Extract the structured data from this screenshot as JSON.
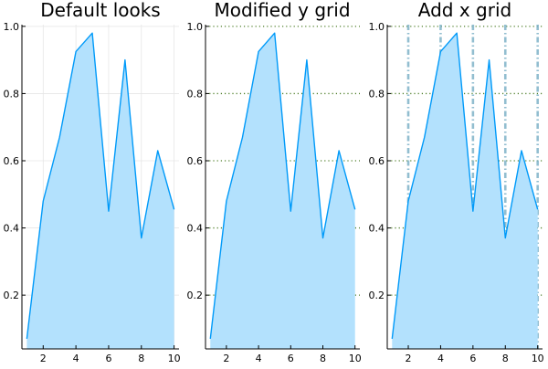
{
  "chart_data": [
    {
      "type": "area",
      "title": "Default looks",
      "xlabel": "",
      "ylabel": "",
      "x": [
        1,
        2,
        3,
        4,
        5,
        6,
        7,
        8,
        9,
        10
      ],
      "series": [
        {
          "values": [
            0.07,
            0.48,
            0.67,
            0.925,
            0.98,
            0.45,
            0.9,
            0.37,
            0.63,
            0.455
          ]
        }
      ],
      "xlim": [
        0.7,
        10.3
      ],
      "ylim": [
        0.04,
        1.005
      ],
      "xticks": [
        2,
        4,
        6,
        8,
        10
      ],
      "yticks": [
        0.2,
        0.4,
        0.6,
        0.8,
        1.0
      ],
      "xtick_labels": [
        "2",
        "4",
        "6",
        "8",
        "10"
      ],
      "ytick_labels": [
        "0.2",
        "0.4",
        "0.6",
        "0.8",
        "1.0"
      ],
      "grid": {
        "x": {
          "show": true,
          "style": "solid",
          "color": "#e6e6e6",
          "alpha": 1
        },
        "y": {
          "show": true,
          "style": "solid",
          "color": "#e6e6e6",
          "alpha": 1
        }
      },
      "line_color": "#009af9",
      "fill_color": "#b3e1fd",
      "legend": "none"
    },
    {
      "type": "area",
      "title": "Modified y grid",
      "xlabel": "",
      "ylabel": "",
      "x": [
        1,
        2,
        3,
        4,
        5,
        6,
        7,
        8,
        9,
        10
      ],
      "series": [
        {
          "values": [
            0.07,
            0.48,
            0.67,
            0.925,
            0.98,
            0.45,
            0.9,
            0.37,
            0.63,
            0.455
          ]
        }
      ],
      "xlim": [
        0.7,
        10.3
      ],
      "ylim": [
        0.04,
        1.005
      ],
      "xticks": [
        2,
        4,
        6,
        8,
        10
      ],
      "yticks": [
        0.2,
        0.4,
        0.6,
        0.8,
        1.0
      ],
      "xtick_labels": [
        "2",
        "4",
        "6",
        "8",
        "10"
      ],
      "ytick_labels": [
        "0.2",
        "0.4",
        "0.6",
        "0.8",
        "1.0"
      ],
      "grid": {
        "x": {
          "show": false
        },
        "y": {
          "show": true,
          "style": "dotted",
          "color": "#4f7f2a",
          "alpha": 1
        }
      },
      "line_color": "#009af9",
      "fill_color": "#b3e1fd",
      "legend": "none"
    },
    {
      "type": "area",
      "title": "Add x grid",
      "xlabel": "",
      "ylabel": "",
      "x": [
        1,
        2,
        3,
        4,
        5,
        6,
        7,
        8,
        9,
        10
      ],
      "series": [
        {
          "values": [
            0.07,
            0.48,
            0.67,
            0.925,
            0.98,
            0.45,
            0.9,
            0.37,
            0.63,
            0.455
          ]
        }
      ],
      "xlim": [
        0.7,
        10.3
      ],
      "ylim": [
        0.04,
        1.005
      ],
      "xticks": [
        2,
        4,
        6,
        8,
        10
      ],
      "yticks": [
        0.2,
        0.4,
        0.6,
        0.8,
        1.0
      ],
      "xtick_labels": [
        "2",
        "4",
        "6",
        "8",
        "10"
      ],
      "ytick_labels": [
        "0.2",
        "0.4",
        "0.6",
        "0.8",
        "1.0"
      ],
      "grid": {
        "x": {
          "show": true,
          "style": "dashdot",
          "color": "#7fb3c8",
          "alpha": 0.85
        },
        "y": {
          "show": true,
          "style": "dotted",
          "color": "#4f7f2a",
          "alpha": 1
        }
      },
      "line_color": "#009af9",
      "fill_color": "#b3e1fd",
      "legend": "none"
    }
  ]
}
